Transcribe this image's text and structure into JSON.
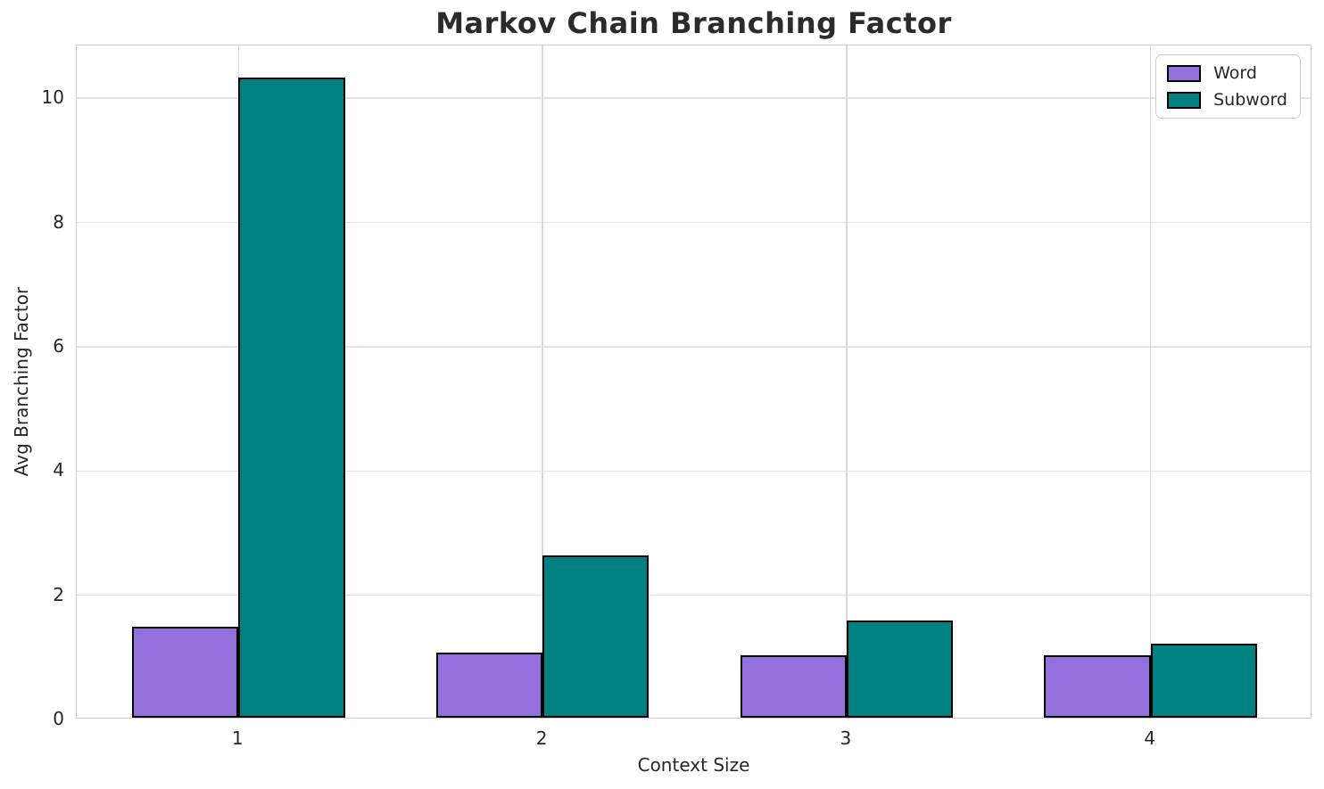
{
  "chart_data": {
    "type": "bar",
    "title": "Markov Chain Branching Factor",
    "xlabel": "Context Size",
    "ylabel": "Avg Branching Factor",
    "categories": [
      "1",
      "2",
      "3",
      "4"
    ],
    "series": [
      {
        "name": "Word",
        "color": "#9370DB",
        "values": [
          1.47,
          1.05,
          1.01,
          1.0
        ]
      },
      {
        "name": "Subword",
        "color": "#008080",
        "values": [
          10.3,
          2.61,
          1.56,
          1.19
        ]
      }
    ],
    "bar_edge_color": "#000000",
    "bar_width_units": 0.35,
    "yticks": [
      0,
      2,
      4,
      6,
      8,
      10
    ],
    "ylim": [
      0,
      10.85
    ],
    "xlim": [
      -0.532,
      3.532
    ],
    "grid": true,
    "legend": {
      "position": "upper right",
      "entries": [
        "Word",
        "Subword"
      ]
    },
    "colors": {
      "text": "#262626",
      "title": "#2b2b2b",
      "grid": "#d9d9d9",
      "spine": "#cccccc",
      "background": "#ffffff"
    }
  }
}
